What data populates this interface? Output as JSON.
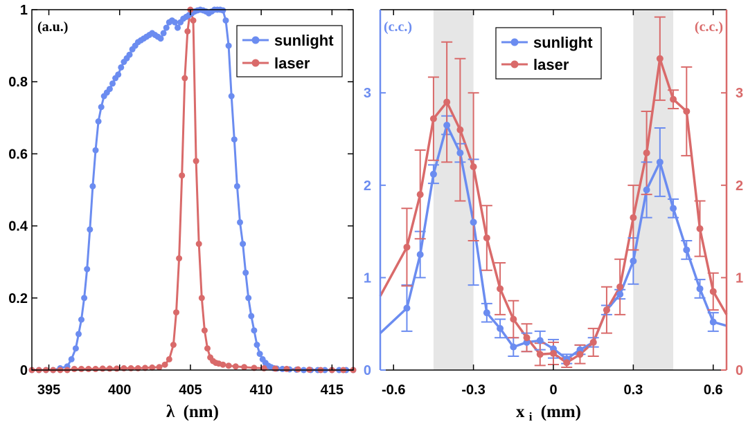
{
  "colors": {
    "sunlight": "#6b8cf0",
    "laser": "#d96a6a",
    "shade": "#e6e6e6",
    "axis": "#000000"
  },
  "chart_data": [
    {
      "type": "line",
      "xlabel_symbol": "λ",
      "xlabel": "(nm)",
      "unit_label": "(a.u.)",
      "xlim": [
        393.8,
        416.5
      ],
      "ylim": [
        0,
        1
      ],
      "xticks": [
        395,
        400,
        405,
        410,
        415
      ],
      "xtick_labels": [
        "395",
        "400",
        "405",
        "410",
        "415"
      ],
      "yticks": [
        0,
        0.2,
        0.4,
        0.6,
        0.8,
        1
      ],
      "ytick_labels": [
        "0",
        "0.2",
        "0.4",
        "0.6",
        "0.8",
        "1"
      ],
      "legend_position": "top-right",
      "grid": false,
      "series": [
        {
          "name": "sunlight",
          "color": "#6b8cf0",
          "x": [
            393.8,
            394.3,
            394.8,
            395.3,
            395.8,
            396.3,
            396.6,
            396.9,
            397.1,
            397.3,
            397.5,
            397.7,
            397.9,
            398.1,
            398.3,
            398.5,
            398.7,
            398.9,
            399.1,
            399.3,
            399.5,
            399.7,
            399.9,
            400.1,
            400.3,
            400.5,
            400.7,
            400.9,
            401.1,
            401.3,
            401.5,
            401.7,
            401.9,
            402.1,
            402.3,
            402.5,
            402.7,
            402.9,
            403.1,
            403.3,
            403.5,
            403.7,
            403.9,
            404.1,
            404.3,
            404.5,
            404.7,
            404.9,
            405.1,
            405.3,
            405.5,
            405.7,
            405.9,
            406.1,
            406.3,
            406.5,
            406.7,
            406.9,
            407.1,
            407.3,
            407.5,
            407.7,
            407.9,
            408.1,
            408.3,
            408.5,
            408.7,
            408.9,
            409.1,
            409.3,
            409.5,
            409.7,
            409.9,
            410.1,
            410.3,
            410.5,
            410.7,
            410.9,
            411.1,
            411.5,
            412,
            412.5,
            413,
            413.5,
            414,
            414.5,
            415,
            415.5,
            416,
            416.5
          ],
          "y": [
            0,
            0,
            0,
            0,
            0.005,
            0.01,
            0.03,
            0.06,
            0.1,
            0.14,
            0.2,
            0.28,
            0.39,
            0.51,
            0.61,
            0.69,
            0.73,
            0.76,
            0.77,
            0.78,
            0.795,
            0.81,
            0.82,
            0.84,
            0.855,
            0.865,
            0.875,
            0.89,
            0.9,
            0.91,
            0.915,
            0.92,
            0.925,
            0.93,
            0.935,
            0.93,
            0.925,
            0.92,
            0.935,
            0.95,
            0.965,
            0.97,
            0.965,
            0.95,
            0.965,
            0.975,
            0.98,
            0.985,
            0.99,
            0.995,
            0.998,
            1,
            0.998,
            0.995,
            0.99,
            0.995,
            1,
            1,
            1,
            0.998,
            0.97,
            0.9,
            0.76,
            0.64,
            0.51,
            0.41,
            0.35,
            0.27,
            0.2,
            0.15,
            0.11,
            0.07,
            0.045,
            0.03,
            0.02,
            0.012,
            0.008,
            0.005,
            0.004,
            0.003,
            0.002,
            0.001,
            0,
            0,
            0,
            0,
            0,
            0,
            0,
            0
          ]
        },
        {
          "name": "laser",
          "color": "#d96a6a",
          "x": [
            393.8,
            394.3,
            394.8,
            395.3,
            395.8,
            396.3,
            396.8,
            397.3,
            397.8,
            398.3,
            398.8,
            399.3,
            399.8,
            400.3,
            400.8,
            401.3,
            401.8,
            402.3,
            402.8,
            403.2,
            403.5,
            403.8,
            404,
            404.2,
            404.4,
            404.6,
            404.8,
            405,
            405.2,
            405.4,
            405.6,
            405.8,
            406,
            406.2,
            406.4,
            406.6,
            406.8,
            407,
            407.3,
            407.7,
            408.2,
            408.8,
            409.5,
            410.2,
            411,
            411.8,
            412.6,
            413.4,
            414.2,
            415,
            415.8,
            416.5
          ],
          "y": [
            0,
            0,
            0,
            0,
            0,
            0,
            0.003,
            0.003,
            0.003,
            0.003,
            0.004,
            0.004,
            0.004,
            0.005,
            0.005,
            0.005,
            0.006,
            0.007,
            0.008,
            0.015,
            0.03,
            0.07,
            0.16,
            0.31,
            0.54,
            0.81,
            0.94,
            1,
            0.97,
            0.58,
            0.35,
            0.2,
            0.11,
            0.06,
            0.035,
            0.025,
            0.02,
            0.018,
            0.015,
            0.012,
            0.01,
            0.008,
            0.006,
            0.005,
            0.004,
            0.003,
            0.002,
            0.001,
            0,
            0,
            0,
            0
          ]
        }
      ]
    },
    {
      "type": "line",
      "xlabel": "x",
      "xlabel_sub": "i",
      "xlabel_unit": "(mm)",
      "left_unit_label": "(c.c.)",
      "right_unit_label": "(c.c.)",
      "xlim": [
        -0.65,
        0.65
      ],
      "ylim_left": [
        0,
        3.9
      ],
      "ylim_right": [
        0,
        3.9
      ],
      "xticks": [
        -0.6,
        -0.3,
        0,
        0.3,
        0.6
      ],
      "xtick_labels": [
        "-0.6",
        "-0.3",
        "0",
        "0.3",
        "0.6"
      ],
      "yticks_left": [
        0,
        1,
        2,
        3
      ],
      "ytick_labels_left": [
        "0",
        "1",
        "2",
        "3"
      ],
      "yticks_right": [
        0,
        1,
        2,
        3
      ],
      "ytick_labels_right": [
        "0",
        "1",
        "2",
        "3"
      ],
      "shaded_x_ranges": [
        [
          -0.45,
          -0.3
        ],
        [
          0.3,
          0.45
        ]
      ],
      "legend_position": "top-center",
      "grid": false,
      "series": [
        {
          "name": "sunlight",
          "color": "#6b8cf0",
          "axis": "left",
          "line_x": [
            -0.65,
            -0.55,
            -0.5,
            -0.45,
            -0.4,
            -0.35,
            -0.3,
            -0.25,
            -0.2,
            -0.15,
            -0.1,
            -0.05,
            0,
            0.05,
            0.1,
            0.15,
            0.2,
            0.25,
            0.3,
            0.35,
            0.4,
            0.45,
            0.5,
            0.55,
            0.6,
            0.65
          ],
          "line_y": [
            0.4,
            0.67,
            1.25,
            2.12,
            2.65,
            2.35,
            1.6,
            0.62,
            0.45,
            0.25,
            0.3,
            0.32,
            0.23,
            0.12,
            0.22,
            0.3,
            0.65,
            0.82,
            1.18,
            1.95,
            2.25,
            1.75,
            1.3,
            0.88,
            0.52,
            0.48
          ],
          "x": [
            -0.55,
            -0.5,
            -0.45,
            -0.4,
            -0.35,
            -0.3,
            -0.25,
            -0.2,
            -0.15,
            -0.1,
            -0.05,
            0,
            0.05,
            0.1,
            0.15,
            0.2,
            0.25,
            0.3,
            0.35,
            0.4,
            0.45,
            0.5,
            0.55,
            0.6
          ],
          "y": [
            0.67,
            1.25,
            2.12,
            2.65,
            2.35,
            1.6,
            0.62,
            0.45,
            0.25,
            0.3,
            0.32,
            0.23,
            0.12,
            0.22,
            0.3,
            0.65,
            0.82,
            1.18,
            1.95,
            2.25,
            1.75,
            1.3,
            0.88,
            0.52
          ],
          "err": [
            0.25,
            0.25,
            0.1,
            0.1,
            0.1,
            0.68,
            0.1,
            0.1,
            0.1,
            0.1,
            0.1,
            0.1,
            0.05,
            0.05,
            0.05,
            0.05,
            0.05,
            0.25,
            0.3,
            0.37,
            0.1,
            0.1,
            0.1,
            0.1
          ]
        },
        {
          "name": "laser",
          "color": "#d96a6a",
          "axis": "right",
          "line_x": [
            -0.65,
            -0.55,
            -0.5,
            -0.45,
            -0.4,
            -0.35,
            -0.3,
            -0.25,
            -0.2,
            -0.15,
            -0.1,
            -0.05,
            0,
            0.05,
            0.1,
            0.15,
            0.2,
            0.25,
            0.3,
            0.35,
            0.4,
            0.45,
            0.5,
            0.55,
            0.6,
            0.65
          ],
          "line_y": [
            0.8,
            1.33,
            1.9,
            2.72,
            2.9,
            2.6,
            2.2,
            1.43,
            0.88,
            0.55,
            0.35,
            0.17,
            0.18,
            0.08,
            0.17,
            0.3,
            0.65,
            0.9,
            1.65,
            2.35,
            3.37,
            2.93,
            2.8,
            1.53,
            0.85,
            0.6
          ],
          "x": [
            -0.55,
            -0.5,
            -0.45,
            -0.4,
            -0.35,
            -0.3,
            -0.25,
            -0.2,
            -0.15,
            -0.1,
            -0.05,
            0,
            0.05,
            0.1,
            0.15,
            0.2,
            0.25,
            0.3,
            0.35,
            0.4,
            0.45,
            0.5,
            0.55,
            0.6
          ],
          "y": [
            1.33,
            1.9,
            2.72,
            2.9,
            2.6,
            2.2,
            1.43,
            0.88,
            0.55,
            0.35,
            0.17,
            0.18,
            0.08,
            0.17,
            0.3,
            0.65,
            0.9,
            1.65,
            2.35,
            3.37,
            2.93,
            2.8,
            1.53,
            0.85
          ],
          "err": [
            0.42,
            0.48,
            0.45,
            0.65,
            0.77,
            0.8,
            0.35,
            0.28,
            0.2,
            0.15,
            0.12,
            0.12,
            0.05,
            0.1,
            0.15,
            0.25,
            0.3,
            0.35,
            0.45,
            0.45,
            0.1,
            0.48,
            0.3,
            0.2
          ]
        }
      ]
    }
  ]
}
